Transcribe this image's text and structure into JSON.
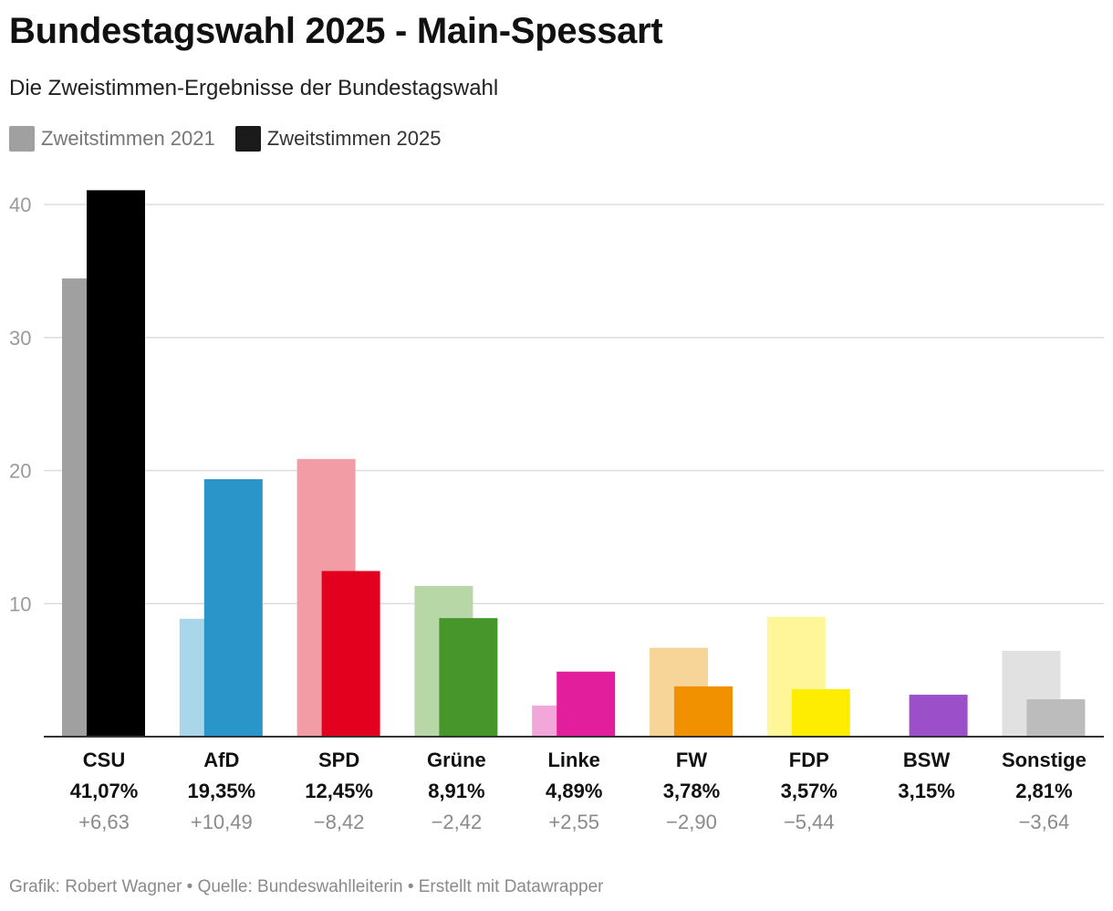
{
  "header": {
    "title": "Bundestagswahl 2025 - Main-Spessart",
    "subtitle": "Die Zweistimmen-Ergebnisse der Bundestagswahl"
  },
  "legend": {
    "items": [
      {
        "label": "Zweitstimmen 2021",
        "color": "#a0a0a0"
      },
      {
        "label": "Zweitstimmen 2025",
        "color": "#1a1a1a"
      }
    ]
  },
  "footer": {
    "text": "Grafik: Robert Wagner • Quelle: Bundeswahlleiterin • Erstellt mit Datawrapper"
  },
  "chart_data": {
    "type": "bar",
    "title": "Bundestagswahl 2025 - Main-Spessart",
    "subtitle": "Die Zweistimmen-Ergebnisse der Bundestagswahl",
    "xlabel": "",
    "ylabel": "",
    "ylim": [
      0,
      40
    ],
    "yticks": [
      "10",
      "20",
      "30",
      "40"
    ],
    "grid": true,
    "legend_position": "top-left",
    "categories": [
      "CSU",
      "AfD",
      "SPD",
      "Grüne",
      "Linke",
      "FW",
      "FDP",
      "BSW",
      "Sonstige"
    ],
    "series": [
      {
        "name": "Zweitstimmen 2021",
        "values": [
          34.44,
          8.86,
          20.87,
          11.33,
          2.34,
          6.68,
          9.01,
          null,
          6.45
        ]
      },
      {
        "name": "Zweitstimmen 2025",
        "values": [
          41.07,
          19.35,
          12.45,
          8.91,
          4.89,
          3.78,
          3.57,
          3.15,
          2.81
        ]
      }
    ],
    "colors_2021": [
      "#a0a0a0",
      "#aad6ea",
      "#f29ca6",
      "#b7d7a6",
      "#f2a6d9",
      "#f7d497",
      "#fff699",
      null,
      "#e1e1e1"
    ],
    "colors_2025": [
      "#000000",
      "#2a95c9",
      "#e3001e",
      "#46962b",
      "#e31e9c",
      "#f29100",
      "#ffed00",
      "#9b4fc8",
      "#bcbcbc"
    ],
    "value_labels": [
      "41,07%",
      "19,35%",
      "12,45%",
      "8,91%",
      "4,89%",
      "3,78%",
      "3,57%",
      "3,15%",
      "2,81%"
    ],
    "change_labels": [
      "+6,63",
      "+10,49",
      "−8,42",
      "−2,42",
      "+2,55",
      "−2,90",
      "−5,44",
      "",
      "−3,64"
    ]
  }
}
